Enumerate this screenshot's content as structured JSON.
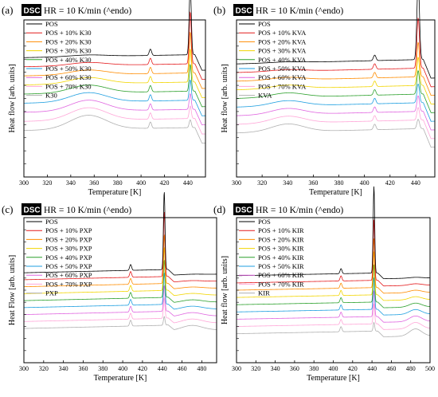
{
  "figure": {
    "header_badge": "DSC",
    "header_text": "HR = 10 K/min (^endo)"
  },
  "chart_data": [
    {
      "panel_label": "(a)",
      "type": "line",
      "xlabel": "Temperature [K]",
      "ylabel": "Heat flow [arb. units]",
      "xlim": [
        300,
        455
      ],
      "xticks": [
        300,
        320,
        340,
        360,
        380,
        400,
        420,
        440
      ],
      "legend_position": "top-left",
      "series": [
        {
          "name": "POS",
          "color": "#000000"
        },
        {
          "name": "POS + 10% K30",
          "color": "#e41a1c"
        },
        {
          "name": "POS + 20% K30",
          "color": "#ff8c00"
        },
        {
          "name": "POS + 30% K30",
          "color": "#f2d500"
        },
        {
          "name": "POS + 40% K30",
          "color": "#2ca02c"
        },
        {
          "name": "POS + 50% K30",
          "color": "#1f9fe0"
        },
        {
          "name": "POS + 60% K30",
          "color": "#e066e0"
        },
        {
          "name": "POS + 70% K30",
          "color": "#ffa6d8"
        },
        {
          "name": "K30",
          "color": "#b0b0b0"
        }
      ]
    },
    {
      "panel_label": "(b)",
      "type": "line",
      "xlabel": "Temperature [K]",
      "ylabel": "Heat flow [arb. units]",
      "xlim": [
        300,
        455
      ],
      "xticks": [
        300,
        320,
        340,
        360,
        380,
        400,
        420,
        440
      ],
      "legend_position": "top-left",
      "series": [
        {
          "name": "POS",
          "color": "#000000"
        },
        {
          "name": "POS + 10% KVA",
          "color": "#e41a1c"
        },
        {
          "name": "POS + 20% KVA",
          "color": "#ff8c00"
        },
        {
          "name": "POS + 30% KVA",
          "color": "#f2d500"
        },
        {
          "name": "POS + 40% KVA",
          "color": "#2ca02c"
        },
        {
          "name": "POS + 50% KVA",
          "color": "#1f9fe0"
        },
        {
          "name": "POS + 60% KVA",
          "color": "#e066e0"
        },
        {
          "name": "POS + 70% KVA",
          "color": "#ffa6d8"
        },
        {
          "name": "KVA",
          "color": "#b0b0b0"
        }
      ]
    },
    {
      "panel_label": "(c)",
      "type": "line",
      "xlabel": "Temperature [K]",
      "ylabel": "Heat Flow [arb. units]",
      "xlim": [
        300,
        495
      ],
      "xticks": [
        300,
        320,
        340,
        360,
        380,
        400,
        420,
        440,
        460,
        480
      ],
      "legend_position": "top-left",
      "series": [
        {
          "name": "POS",
          "color": "#000000"
        },
        {
          "name": "POS + 10% PXP",
          "color": "#e41a1c"
        },
        {
          "name": "POS + 20% PXP",
          "color": "#ff8c00"
        },
        {
          "name": "POS + 30% PXP",
          "color": "#f2d500"
        },
        {
          "name": "POS + 40% PXP",
          "color": "#2ca02c"
        },
        {
          "name": "POS + 50% PXP",
          "color": "#1f9fe0"
        },
        {
          "name": "POS + 60% PXP",
          "color": "#e066e0"
        },
        {
          "name": "POS + 70% PXP",
          "color": "#ffa6d8"
        },
        {
          "name": "PXP",
          "color": "#b0b0b0"
        }
      ]
    },
    {
      "panel_label": "(d)",
      "type": "line",
      "xlabel": "Temperature [K]",
      "ylabel": "Heat flow [arb. units]",
      "xlim": [
        300,
        500
      ],
      "xticks": [
        300,
        320,
        340,
        360,
        380,
        400,
        420,
        440,
        460,
        480,
        500
      ],
      "legend_position": "top-left",
      "series": [
        {
          "name": "POS",
          "color": "#000000"
        },
        {
          "name": "POS + 10% KIR",
          "color": "#e41a1c"
        },
        {
          "name": "POS + 20% KIR",
          "color": "#ff8c00"
        },
        {
          "name": "POS + 30% KIR",
          "color": "#f2d500"
        },
        {
          "name": "POS + 40% KIR",
          "color": "#2ca02c"
        },
        {
          "name": "POS + 50% KIR",
          "color": "#1f9fe0"
        },
        {
          "name": "POS + 60% KIR",
          "color": "#e066e0"
        },
        {
          "name": "POS + 70% KIR",
          "color": "#ffa6d8"
        },
        {
          "name": "KIR",
          "color": "#b0b0b0"
        }
      ]
    }
  ]
}
